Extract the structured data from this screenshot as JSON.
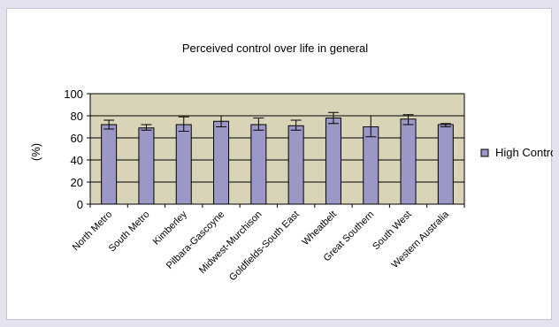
{
  "chart_data": {
    "type": "bar",
    "title": "Perceived control over life in general",
    "xlabel": "",
    "ylabel": "(%)",
    "ylim": [
      0,
      100
    ],
    "yticks": [
      0,
      20,
      40,
      60,
      80,
      100
    ],
    "grid": true,
    "legend_position": "right",
    "categories": [
      "North Metro",
      "South Metro",
      "Kimberley",
      "Pilbara-Gascoyne",
      "Midwest-Murchison",
      "Goldfields-South East",
      "Wheatbelt",
      "Great Southern",
      "South West",
      "Western Australia"
    ],
    "series": [
      {
        "name": "High Control",
        "values": [
          72,
          69,
          72,
          75,
          72,
          71,
          78,
          70,
          77,
          72
        ],
        "error_low": [
          68,
          67,
          66,
          70,
          67,
          67,
          73,
          61,
          72,
          70
        ],
        "error_high": [
          76,
          72,
          79,
          80,
          78,
          76,
          83,
          80,
          81,
          73
        ],
        "color": "#9b98c8"
      }
    ],
    "colors": {
      "plot_background": "#d9d4b8",
      "bar_fill": "#9b98c8",
      "bar_stroke": "#000000",
      "grid": "#000000"
    }
  }
}
